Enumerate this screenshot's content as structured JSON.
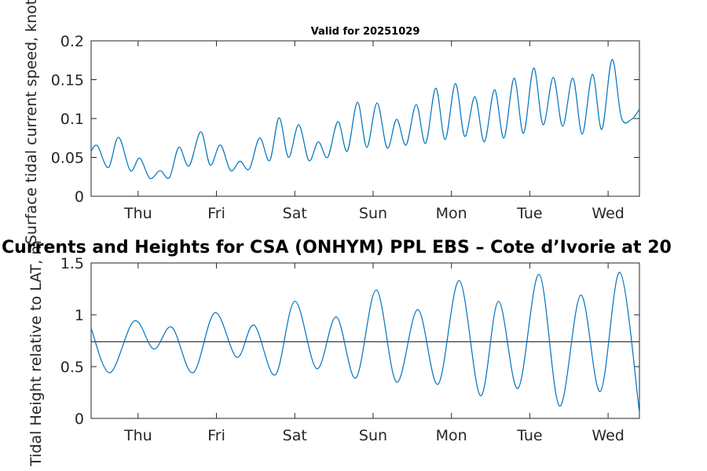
{
  "chart_data": [
    {
      "type": "line",
      "title": "Valid for 20251029",
      "xlabel": "",
      "ylabel": "Surface tidal current speed, knots",
      "ylim": [
        0,
        0.2
      ],
      "xlim": [
        0,
        7
      ],
      "ytick_labels": [
        "0",
        "0.05",
        "0.1",
        "0.15",
        "0.2"
      ],
      "ytick_values": [
        0,
        0.05,
        0.1,
        0.15,
        0.2
      ],
      "xtick_labels": [
        "Thu",
        "Fri",
        "Sat",
        "Sun",
        "Mon",
        "Tue",
        "Wed"
      ],
      "xtick_values": [
        0.6,
        1.6,
        2.6,
        3.6,
        4.6,
        5.6,
        6.6
      ],
      "grid": false,
      "series": [
        {
          "name": "Surface tidal current speed",
          "x": [
            0,
            0.08,
            0.22,
            0.35,
            0.5,
            0.62,
            0.75,
            0.88,
            1.0,
            1.12,
            1.25,
            1.4,
            1.52,
            1.65,
            1.78,
            1.9,
            2.02,
            2.15,
            2.28,
            2.4,
            2.52,
            2.65,
            2.78,
            2.9,
            3.02,
            3.15,
            3.27,
            3.4,
            3.52,
            3.65,
            3.78,
            3.9,
            4.02,
            4.15,
            4.27,
            4.4,
            4.52,
            4.65,
            4.77,
            4.9,
            5.02,
            5.15,
            5.27,
            5.4,
            5.52,
            5.65,
            5.77,
            5.9,
            6.02,
            6.15,
            6.27,
            6.4,
            6.52,
            6.65,
            6.77,
            6.9,
            7.0
          ],
          "values": [
            0.058,
            0.065,
            0.037,
            0.076,
            0.033,
            0.049,
            0.023,
            0.033,
            0.024,
            0.063,
            0.039,
            0.083,
            0.04,
            0.066,
            0.033,
            0.045,
            0.035,
            0.075,
            0.046,
            0.101,
            0.05,
            0.092,
            0.046,
            0.07,
            0.05,
            0.096,
            0.058,
            0.121,
            0.063,
            0.12,
            0.062,
            0.099,
            0.066,
            0.118,
            0.068,
            0.139,
            0.073,
            0.145,
            0.077,
            0.128,
            0.07,
            0.137,
            0.075,
            0.152,
            0.081,
            0.165,
            0.092,
            0.153,
            0.09,
            0.152,
            0.08,
            0.157,
            0.086,
            0.176,
            0.101,
            0.099,
            0.112
          ]
        }
      ]
    },
    {
      "type": "line",
      "title": "Currents and Heights for CSA (ONHYM) PPL EBS  – Cote d’Ivorie at 20",
      "xlabel": "",
      "ylabel": "Tidal Height relative to LAT, m",
      "ylim": [
        0,
        1.5
      ],
      "xlim": [
        0,
        7
      ],
      "ytick_labels": [
        "0",
        "0.5",
        "1",
        "1.5"
      ],
      "ytick_values": [
        0,
        0.5,
        1,
        1.5
      ],
      "xtick_labels": [
        "Thu",
        "Fri",
        "Sat",
        "Sun",
        "Mon",
        "Tue",
        "Wed"
      ],
      "xtick_values": [
        0.6,
        1.6,
        2.6,
        3.6,
        4.6,
        5.6,
        6.6
      ],
      "grid": false,
      "reference_line": 0.74,
      "series": [
        {
          "name": "Tidal height",
          "x": [
            0,
            0.24,
            0.55,
            0.8,
            1.03,
            1.3,
            1.58,
            1.86,
            2.08,
            2.35,
            2.6,
            2.88,
            3.13,
            3.38,
            3.64,
            3.9,
            4.17,
            4.43,
            4.7,
            4.97,
            5.2,
            5.45,
            5.72,
            5.98,
            6.25,
            6.5,
            6.75,
            7.0
          ],
          "values": [
            0.87,
            0.44,
            0.94,
            0.67,
            0.88,
            0.44,
            1.02,
            0.59,
            0.9,
            0.42,
            1.13,
            0.48,
            0.98,
            0.39,
            1.24,
            0.35,
            1.05,
            0.33,
            1.33,
            0.22,
            1.13,
            0.29,
            1.39,
            0.12,
            1.19,
            0.26,
            1.41,
            0.06
          ]
        }
      ]
    }
  ]
}
